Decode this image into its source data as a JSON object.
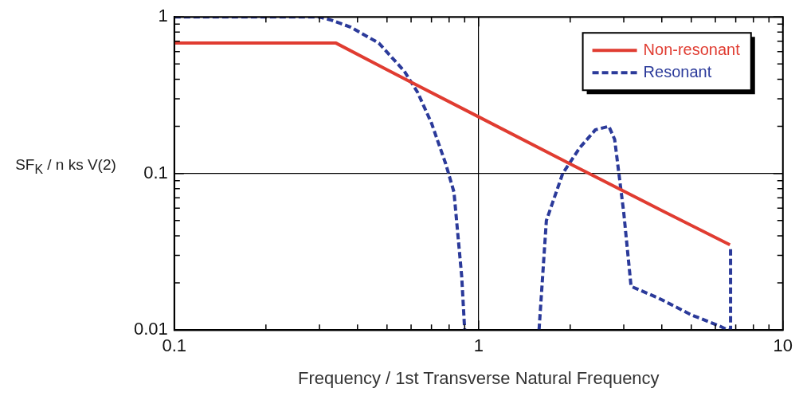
{
  "chart_data": {
    "type": "line",
    "xlabel": "Frequency / 1st Transverse Natural Frequency",
    "ylabel": "SF$_{K}$ / n ks V(2)",
    "log": "xy",
    "grid": true,
    "legend": "top right",
    "marker": "none",
    "xlim": [
      0.1,
      10
    ],
    "ylim": [
      0.01,
      1
    ],
    "xticks": [
      0.1,
      {
        "value": 0.2,
        "label": null
      },
      {
        "value": 0.3,
        "label": null
      },
      {
        "value": 0.4,
        "label": null
      },
      {
        "value": 0.5,
        "label": null
      },
      {
        "value": 0.6,
        "label": null
      },
      {
        "value": 0.7,
        "label": null
      },
      {
        "value": 0.8,
        "label": null
      },
      {
        "value": 0.9,
        "label": null
      },
      1,
      {
        "value": 2,
        "label": null
      },
      {
        "value": 3,
        "label": null
      },
      {
        "value": 4,
        "label": null
      },
      {
        "value": 5,
        "label": null
      },
      {
        "value": 6,
        "label": null
      },
      {
        "value": 7,
        "label": null
      },
      {
        "value": 8,
        "label": null
      },
      {
        "value": 9,
        "label": null
      },
      10
    ],
    "yticks": [
      0.01,
      {
        "value": 0.02,
        "label": null
      },
      {
        "value": 0.03,
        "label": null
      },
      {
        "value": 0.04,
        "label": null
      },
      {
        "value": 0.05,
        "label": null
      },
      {
        "value": 0.06,
        "label": null
      },
      {
        "value": 0.07,
        "label": null
      },
      {
        "value": 0.08,
        "label": null
      },
      {
        "value": 0.09,
        "label": null
      },
      0.1,
      {
        "value": 0.2,
        "label": null
      },
      {
        "value": 0.3,
        "label": null
      },
      {
        "value": 0.4,
        "label": null
      },
      {
        "value": 0.5,
        "label": null
      },
      {
        "value": 0.6,
        "label": null
      },
      {
        "value": 0.7,
        "label": null
      },
      {
        "value": 0.8,
        "label": null
      },
      {
        "value": 0.9,
        "label": null
      },
      1
    ],
    "series": [
      {
        "name": "Non-resonant",
        "color": "#e03c31",
        "line_style": "solid",
        "x": [
          0.1,
          0.34,
          0.5,
          1,
          2,
          4,
          6.7
        ],
        "values": [
          0.68,
          0.68,
          0.46,
          0.23,
          0.115,
          0.058,
          0.035
        ]
      },
      {
        "name": "Resonant",
        "color": "#2b3a9a",
        "line_style": "dashed",
        "x": [
          0.1,
          0.3,
          0.33,
          0.38,
          0.47,
          0.57,
          0.63,
          0.7,
          0.78,
          0.83,
          0.88,
          0.9,
          1.2,
          1.58,
          1.67,
          1.89,
          2.15,
          2.42,
          2.68,
          2.8,
          3.0,
          3.17,
          3.9,
          5.0,
          6.2,
          6.6,
          6.73,
          6.73
        ],
        "values": [
          1,
          1,
          0.95,
          0.86,
          0.68,
          0.45,
          0.33,
          0.21,
          0.115,
          0.076,
          0.022,
          0.01,
          null,
          0.01,
          0.05,
          0.1,
          0.146,
          0.19,
          0.2,
          0.165,
          0.056,
          0.019,
          0.016,
          0.0125,
          0.0106,
          0.01,
          0.01,
          0.033
        ]
      }
    ]
  }
}
